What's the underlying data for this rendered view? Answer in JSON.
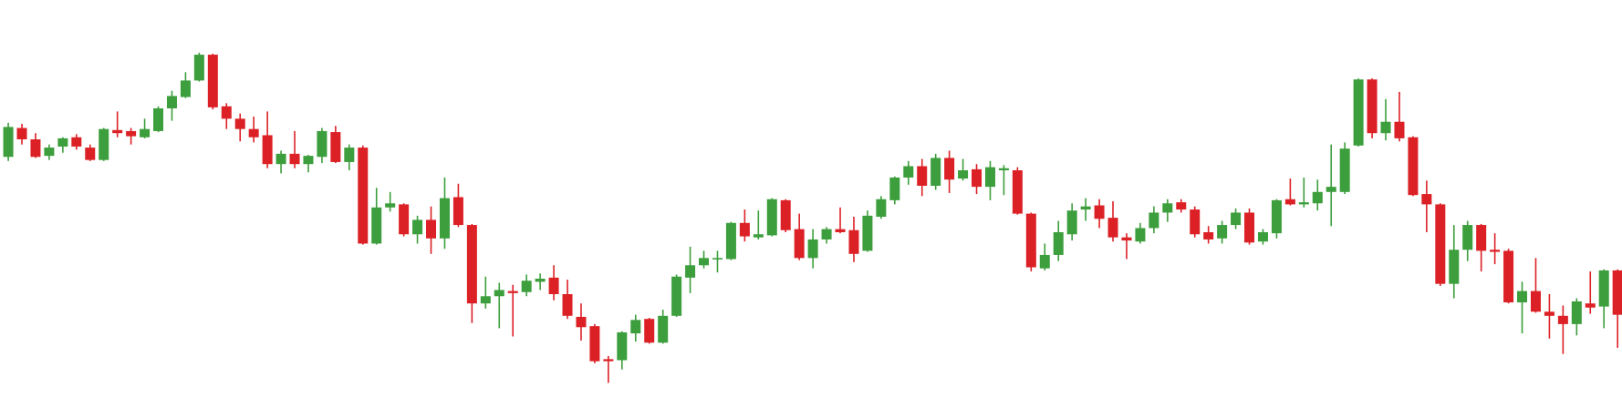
{
  "chart_data": {
    "type": "candlestick",
    "up_color": "#3c9e3c",
    "down_color": "#dc2126",
    "ylim": [
      0,
      405
    ],
    "open": [
      253,
      281,
      270,
      254,
      263,
      272,
      262,
      250,
      279,
      278,
      272,
      278,
      300,
      311,
      327,
      352,
      302,
      290,
      280,
      274,
      246,
      256,
      246,
      253,
      277,
      248,
      262,
      169,
      204,
      207,
      178,
      192,
      174,
      214,
      187,
      111,
      118,
      123,
      122,
      132,
      136,
      120,
      98,
      89,
      57,
      56,
      82,
      96,
      73,
      99,
      136,
      148,
      154,
      154,
      189,
      175,
      177,
      211,
      183,
      155,
      173,
      183,
      182,
      162,
      195,
      211,
      233,
      244,
      225,
      252,
      232,
      241,
      224,
      240,
      240,
      198,
      145,
      158,
      178,
      202,
      206,
      194,
      175,
      171,
      184,
      199,
      209,
      202,
      180,
      174,
      187,
      199,
      171,
      179,
      212,
      207,
      208,
      219,
      219,
      264,
      328,
      276,
      287,
      272,
      217,
      207,
      130,
      163,
      187,
      163,
      162,
      112,
      123,
      103,
      99,
      91,
      111,
      108,
      143
    ],
    "high": [
      286,
      285,
      276,
      265,
      272,
      275,
      265,
      281,
      297,
      281,
      290,
      302,
      317,
      335,
      354,
      353,
      305,
      295,
      292,
      297,
      259,
      278,
      255,
      281,
      283,
      265,
      264,
      223,
      219,
      208,
      196,
      205,
      233,
      227,
      188,
      137,
      131,
      129,
      139,
      140,
      148,
      134,
      111,
      91,
      60,
      84,
      100,
      97,
      105,
      139,
      166,
      162,
      162,
      190,
      202,
      201,
      213,
      212,
      198,
      183,
      185,
      204,
      195,
      201,
      215,
      234,
      249,
      251,
      256,
      259,
      251,
      246,
      249,
      245,
      243,
      199,
      169,
      191,
      208,
      213,
      212,
      210,
      179,
      189,
      205,
      212,
      212,
      205,
      186,
      191,
      203,
      203,
      183,
      212,
      232,
      233,
      231,
      265,
      267,
      329,
      329,
      309,
      316,
      273,
      230,
      208,
      187,
      191,
      188,
      179,
      164,
      132,
      155,
      120,
      109,
      116,
      142,
      144,
      144
    ],
    "low": [
      249,
      265,
      252,
      250,
      257,
      260,
      249,
      249,
      272,
      265,
      271,
      277,
      288,
      310,
      326,
      299,
      280,
      268,
      267,
      242,
      237,
      242,
      238,
      247,
      247,
      240,
      168,
      168,
      200,
      176,
      169,
      159,
      164,
      185,
      92,
      106,
      87,
      79,
      118,
      124,
      114,
      96,
      75,
      53,
      34,
      47,
      74,
      72,
      72,
      98,
      121,
      145,
      141,
      153,
      171,
      173,
      176,
      180,
      153,
      145,
      169,
      179,
      151,
      161,
      193,
      207,
      226,
      215,
      221,
      218,
      230,
      217,
      211,
      216,
      197,
      142,
      143,
      152,
      172,
      191,
      184,
      171,
      154,
      169,
      179,
      190,
      199,
      175,
      169,
      169,
      183,
      168,
      168,
      174,
      206,
      204,
      201,
      186,
      217,
      263,
      271,
      269,
      268,
      215,
      180,
      128,
      116,
      152,
      142,
      149,
      111,
      82,
      102,
      77,
      62,
      80,
      101,
      87,
      68
    ],
    "close": [
      282,
      270,
      253,
      262,
      271,
      263,
      250,
      280,
      276,
      273,
      280,
      300,
      312,
      327,
      352,
      301,
      290,
      280,
      272,
      246,
      256,
      246,
      254,
      278,
      248,
      262,
      169,
      204,
      208,
      178,
      192,
      174,
      213,
      187,
      111,
      118,
      124,
      121,
      133,
      135,
      120,
      99,
      88,
      55,
      55,
      83,
      95,
      73,
      99,
      137,
      148,
      155,
      155,
      189,
      176,
      178,
      212,
      182,
      155,
      173,
      183,
      180,
      159,
      196,
      212,
      233,
      244,
      225,
      252,
      231,
      240,
      224,
      243,
      242,
      198,
      146,
      158,
      180,
      201,
      205,
      193,
      175,
      172,
      184,
      199,
      208,
      202,
      178,
      173,
      187,
      199,
      170,
      180,
      211,
      207,
      209,
      219,
      224,
      261,
      328,
      276,
      287,
      271,
      216,
      207,
      130,
      163,
      187,
      162,
      161,
      112,
      123,
      103,
      99,
      91,
      113,
      107,
      143,
      100
    ]
  }
}
